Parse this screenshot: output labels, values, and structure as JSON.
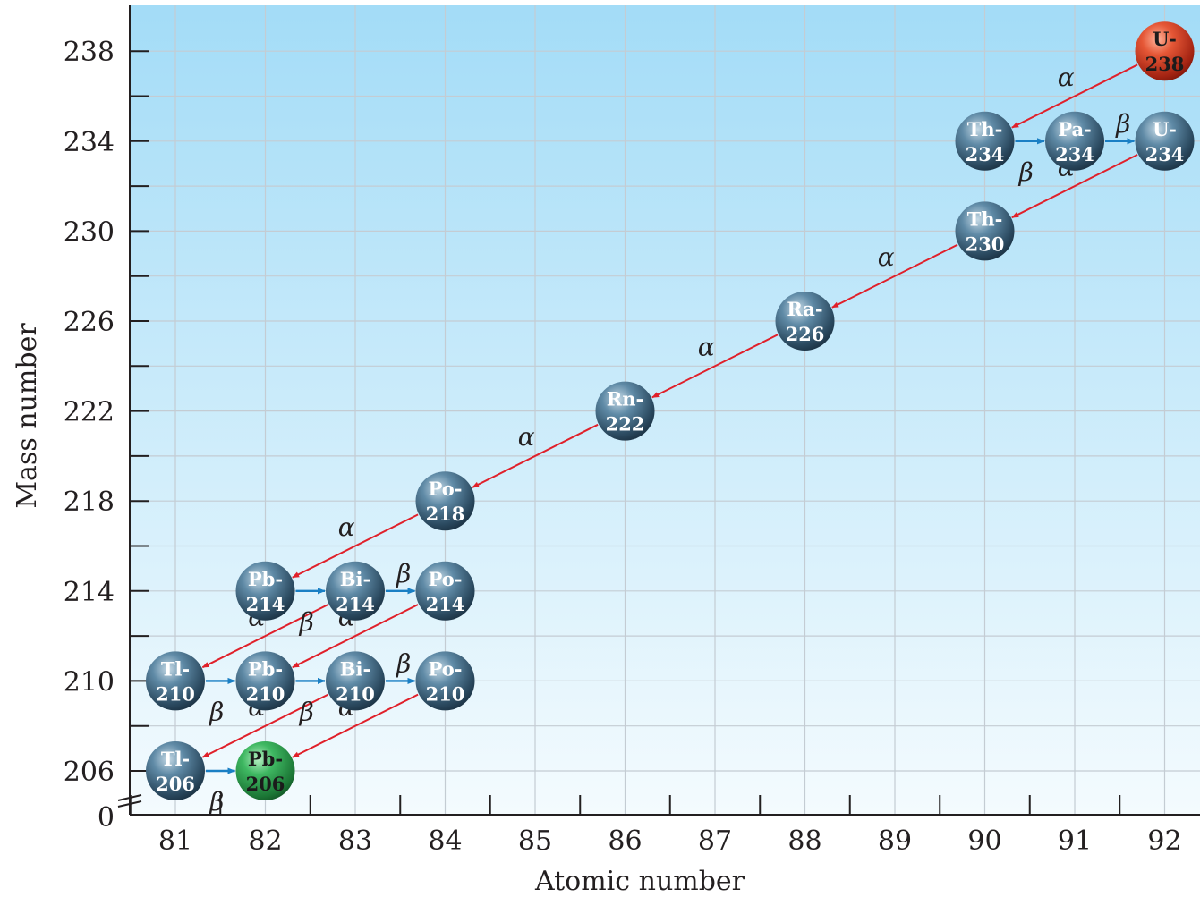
{
  "chart_data": {
    "type": "diagram",
    "xlabel": "Atomic number",
    "ylabel": "Mass number",
    "x_ticks": [
      "81",
      "82",
      "83",
      "84",
      "85",
      "86",
      "87",
      "88",
      "89",
      "90",
      "91",
      "92"
    ],
    "y_ticks": [
      "206",
      "210",
      "214",
      "218",
      "222",
      "226",
      "230",
      "234",
      "238"
    ],
    "y_zero_label": "0",
    "colors": {
      "background_top": "#a3dcf7",
      "background_bottom": "#f4fbfe",
      "grid": "#c4ccd3",
      "nuclide": "#3e6a86",
      "start_nuclide": "#e0472c",
      "end_nuclide": "#2fa14f",
      "alpha_arrow": "#e0202a",
      "beta_arrow": "#1a7fc4"
    },
    "nuclides": [
      {
        "id": "U238",
        "symbol": "U-",
        "mass": "238",
        "Z": 92,
        "A": 238,
        "kind": "start"
      },
      {
        "id": "Th234",
        "symbol": "Th-",
        "mass": "234",
        "Z": 90,
        "A": 234,
        "kind": "normal"
      },
      {
        "id": "Pa234",
        "symbol": "Pa-",
        "mass": "234",
        "Z": 91,
        "A": 234,
        "kind": "normal"
      },
      {
        "id": "U234",
        "symbol": "U-",
        "mass": "234",
        "Z": 92,
        "A": 234,
        "kind": "normal"
      },
      {
        "id": "Th230",
        "symbol": "Th-",
        "mass": "230",
        "Z": 90,
        "A": 230,
        "kind": "normal"
      },
      {
        "id": "Ra226",
        "symbol": "Ra-",
        "mass": "226",
        "Z": 88,
        "A": 226,
        "kind": "normal"
      },
      {
        "id": "Rn222",
        "symbol": "Rn-",
        "mass": "222",
        "Z": 86,
        "A": 222,
        "kind": "normal"
      },
      {
        "id": "Po218",
        "symbol": "Po-",
        "mass": "218",
        "Z": 84,
        "A": 218,
        "kind": "normal"
      },
      {
        "id": "Pb214",
        "symbol": "Pb-",
        "mass": "214",
        "Z": 82,
        "A": 214,
        "kind": "normal"
      },
      {
        "id": "Bi214",
        "symbol": "Bi-",
        "mass": "214",
        "Z": 83,
        "A": 214,
        "kind": "normal"
      },
      {
        "id": "Po214",
        "symbol": "Po-",
        "mass": "214",
        "Z": 84,
        "A": 214,
        "kind": "normal"
      },
      {
        "id": "Tl210",
        "symbol": "Tl-",
        "mass": "210",
        "Z": 81,
        "A": 210,
        "kind": "normal"
      },
      {
        "id": "Pb210",
        "symbol": "Pb-",
        "mass": "210",
        "Z": 82,
        "A": 210,
        "kind": "normal"
      },
      {
        "id": "Bi210",
        "symbol": "Bi-",
        "mass": "210",
        "Z": 83,
        "A": 210,
        "kind": "normal"
      },
      {
        "id": "Po210",
        "symbol": "Po-",
        "mass": "210",
        "Z": 84,
        "A": 210,
        "kind": "normal"
      },
      {
        "id": "Tl206",
        "symbol": "Tl-",
        "mass": "206",
        "Z": 81,
        "A": 206,
        "kind": "normal"
      },
      {
        "id": "Pb206",
        "symbol": "Pb-",
        "mass": "206",
        "Z": 82,
        "A": 206,
        "kind": "end"
      }
    ],
    "decays": [
      {
        "from": "U238",
        "to": "Th234",
        "type": "alpha",
        "label": "α"
      },
      {
        "from": "Th234",
        "to": "Pa234",
        "type": "beta",
        "label": "β"
      },
      {
        "from": "Pa234",
        "to": "U234",
        "type": "beta",
        "label": "β"
      },
      {
        "from": "U234",
        "to": "Th230",
        "type": "alpha",
        "label": "α"
      },
      {
        "from": "Th230",
        "to": "Ra226",
        "type": "alpha",
        "label": "α"
      },
      {
        "from": "Ra226",
        "to": "Rn222",
        "type": "alpha",
        "label": "α"
      },
      {
        "from": "Rn222",
        "to": "Po218",
        "type": "alpha",
        "label": "α"
      },
      {
        "from": "Po218",
        "to": "Pb214",
        "type": "alpha",
        "label": "α"
      },
      {
        "from": "Pb214",
        "to": "Bi214",
        "type": "beta",
        "label": "β"
      },
      {
        "from": "Bi214",
        "to": "Po214",
        "type": "beta",
        "label": "β"
      },
      {
        "from": "Bi214",
        "to": "Tl210",
        "type": "alpha",
        "label": "α"
      },
      {
        "from": "Po214",
        "to": "Pb210",
        "type": "alpha",
        "label": "α"
      },
      {
        "from": "Tl210",
        "to": "Pb210",
        "type": "beta",
        "label": "β"
      },
      {
        "from": "Pb210",
        "to": "Bi210",
        "type": "beta",
        "label": "β"
      },
      {
        "from": "Bi210",
        "to": "Po210",
        "type": "beta",
        "label": "β"
      },
      {
        "from": "Bi210",
        "to": "Tl206",
        "type": "alpha",
        "label": "α"
      },
      {
        "from": "Po210",
        "to": "Pb206",
        "type": "alpha",
        "label": "α"
      },
      {
        "from": "Tl206",
        "to": "Pb206",
        "type": "beta",
        "label": "β"
      }
    ]
  }
}
